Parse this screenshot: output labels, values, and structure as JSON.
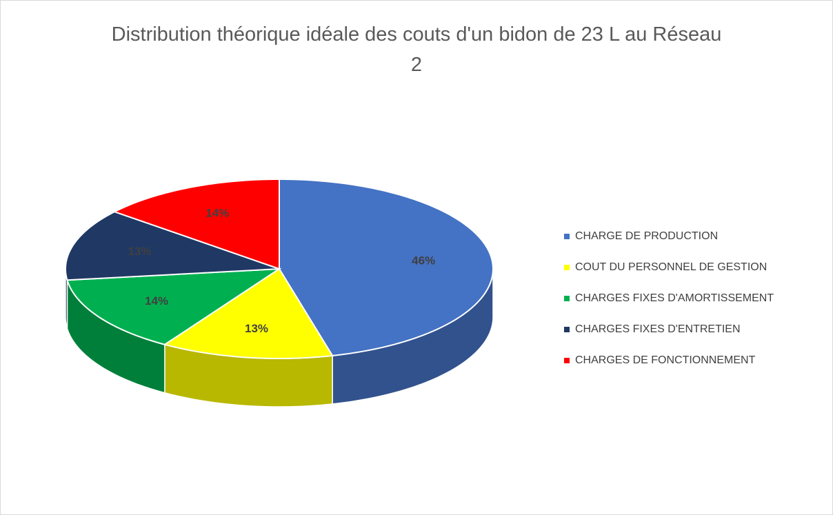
{
  "chart_data": {
    "type": "pie",
    "title": "Distribution théorique idéale des couts d'un bidon de 23 L au Réseau 2",
    "categories": [
      "CHARGE DE PRODUCTION",
      "COUT DU PERSONNEL DE GESTION",
      "CHARGES FIXES D'AMORTISSEMENT",
      "CHARGES FIXES D'ENTRETIEN",
      "CHARGES DE FONCTIONNEMENT"
    ],
    "values": [
      46,
      13,
      14,
      13,
      14
    ],
    "value_labels": [
      "46%",
      "13%",
      "14%",
      "13%",
      "14%"
    ],
    "colors": [
      "#4472c4",
      "#ffff00",
      "#00b050",
      "#203864",
      "#ff0000"
    ],
    "legend": "right"
  }
}
